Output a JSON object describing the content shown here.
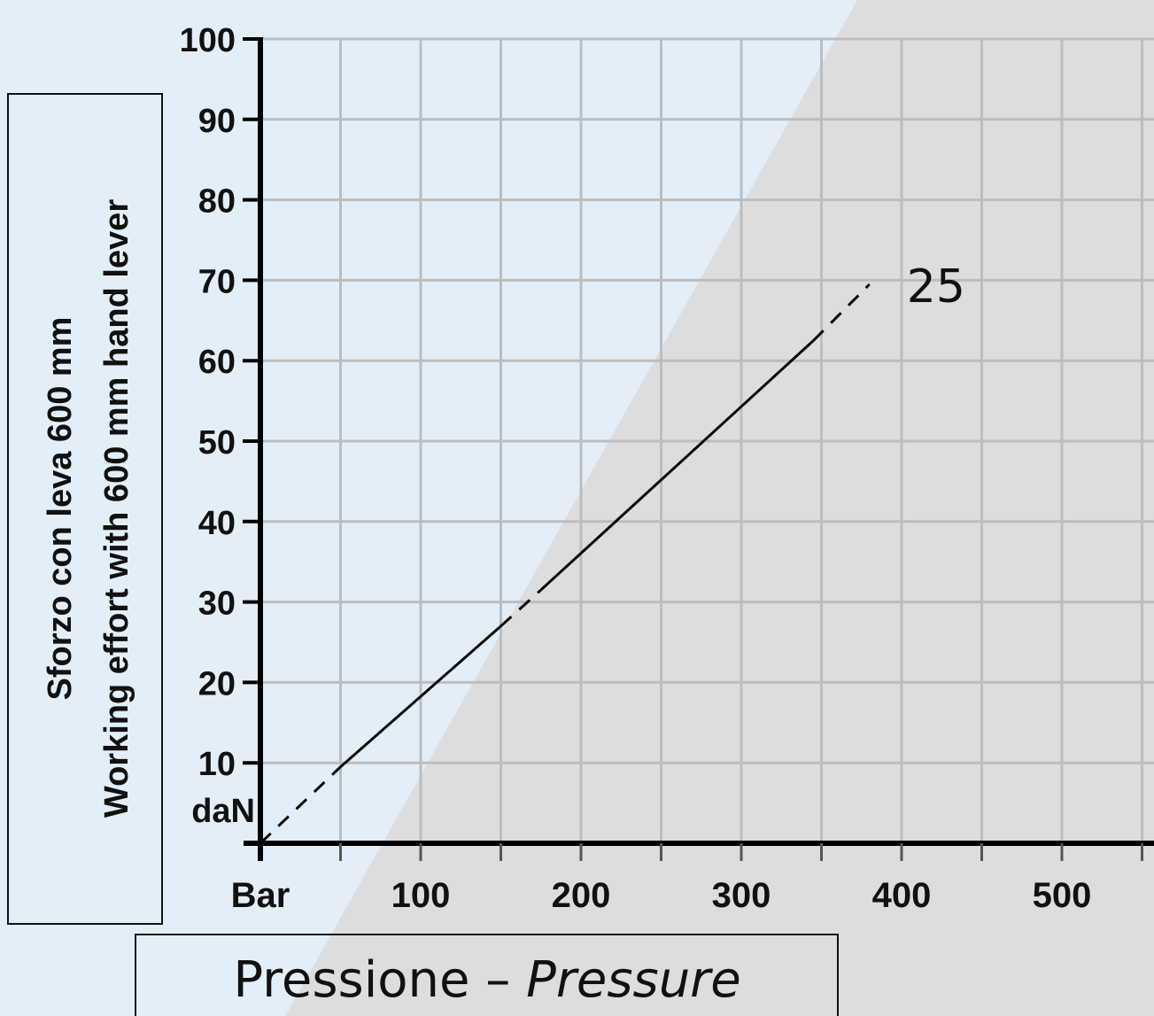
{
  "chart_data": {
    "type": "line",
    "xlabel": "Pressione",
    "xlabel_separator": "–",
    "xlabel_translation": "Pressure",
    "ylabel_line1": "Sforzo con leva 600 mm",
    "ylabel_line2": "Working effort with 600 mm hand lever",
    "x_unit": "Bar",
    "y_unit": "daN",
    "xlim": [
      0,
      560
    ],
    "ylim": [
      0,
      100
    ],
    "x_ticks": [
      100,
      200,
      300,
      400,
      500
    ],
    "y_ticks": [
      10,
      20,
      30,
      40,
      50,
      60,
      70,
      80,
      90,
      100
    ],
    "grid": true,
    "colors": {
      "background_left": "#e2eff9",
      "background_right": "#dddddd",
      "grid": "#bdbdbd",
      "axis": "#000000",
      "line": "#000000"
    },
    "series": [
      {
        "name": "25",
        "segments": [
          {
            "style": "dashed",
            "points": [
              [
                0,
                0
              ],
              [
                50,
                9.5
              ]
            ]
          },
          {
            "style": "solid",
            "points": [
              [
                50,
                9.5
              ],
              [
                150,
                27
              ]
            ]
          },
          {
            "style": "dashed",
            "points": [
              [
                150,
                27
              ],
              [
                175,
                31.5
              ]
            ]
          },
          {
            "style": "solid",
            "points": [
              [
                175,
                31.5
              ],
              [
                345,
                62.5
              ]
            ]
          },
          {
            "style": "dashed",
            "points": [
              [
                345,
                62.5
              ],
              [
                380,
                69.5
              ]
            ]
          }
        ]
      }
    ]
  }
}
